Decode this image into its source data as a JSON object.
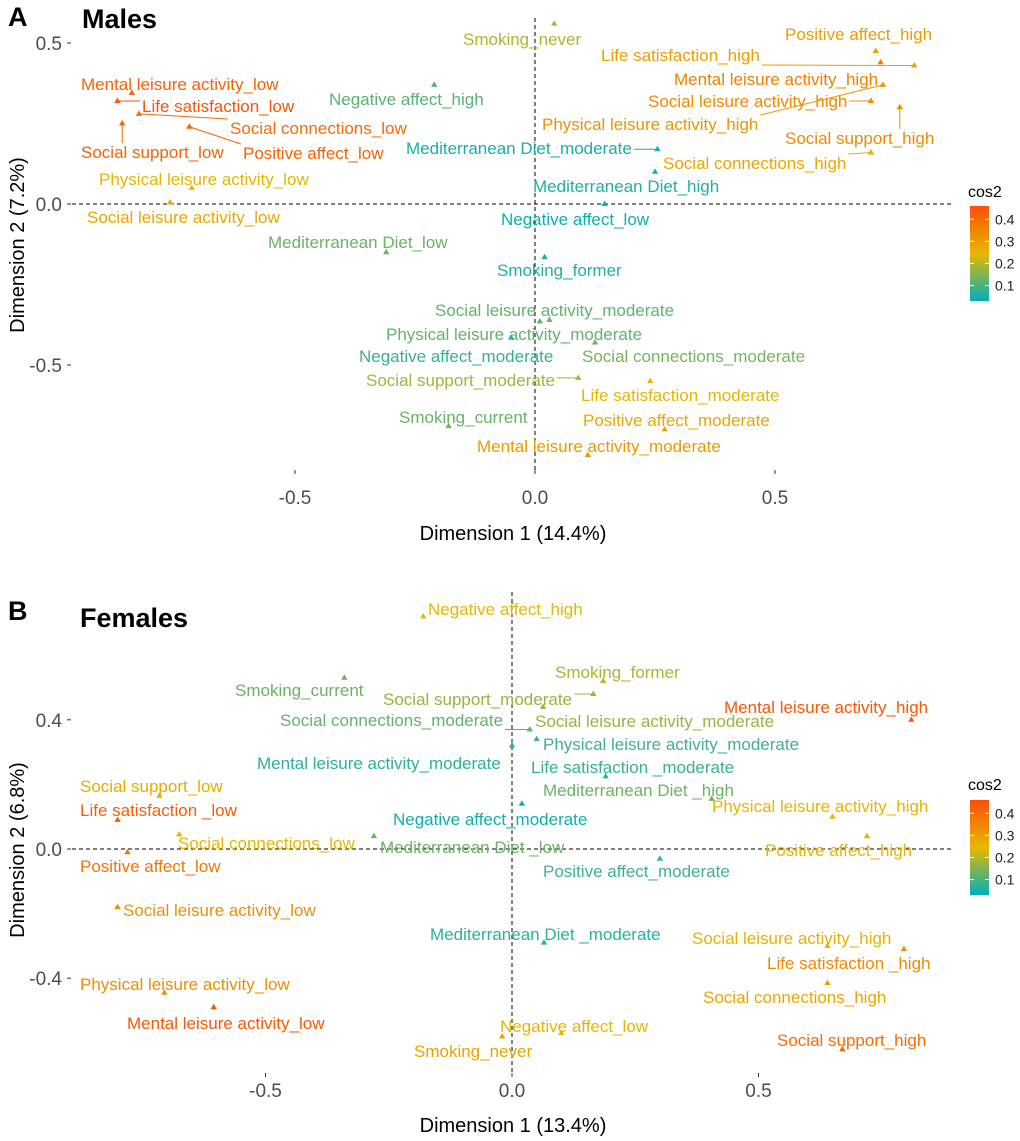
{
  "gradient_colors": [
    "#00AFBB",
    "#E7B800",
    "#FC4E07"
  ],
  "chart_data": [
    {
      "type": "scatter",
      "panel_letter": "A",
      "title": "Males",
      "xlabel": "Dimension 1 (14.4%)",
      "ylabel": "Dimension 2 (7.2%)",
      "x_ticks": [
        "-0.5",
        "0.0",
        "0.5"
      ],
      "y_ticks": [
        "0.5",
        "0.0",
        "-0.5"
      ],
      "x_tick_values": [
        -0.5,
        0,
        0.5
      ],
      "y_tick_values": [
        0.5,
        0,
        -0.5
      ],
      "xlim": [
        -0.97,
        0.87
      ],
      "ylim": [
        -0.83,
        0.57
      ],
      "reference_lines": "dashed at x=0 and y=0",
      "grid": false,
      "legend": {
        "title": "cos2",
        "ticks": [
          "0.1",
          "0.2",
          "0.3",
          "0.4"
        ],
        "tick_values": [
          0.1,
          0.2,
          0.3,
          0.4
        ],
        "range": [
          0.03,
          0.46
        ],
        "placement": "right"
      },
      "points": [
        {
          "label": "Smoking_never",
          "x": 0.04,
          "y": 0.56,
          "cos2": 0.19
        },
        {
          "label": "Positive affect_high",
          "x": 0.71,
          "y": 0.475,
          "cos2": 0.3
        },
        {
          "label": "Life satisfaction_high",
          "x": 0.79,
          "y": 0.43,
          "cos2": 0.3
        },
        {
          "label": "Mental leisure activity_high",
          "x": 0.72,
          "y": 0.44,
          "cos2": 0.36
        },
        {
          "label": "Social leisure activity_high",
          "x": 0.7,
          "y": 0.32,
          "cos2": 0.34
        },
        {
          "label": "Physical leisure activity_high",
          "x": 0.725,
          "y": 0.37,
          "cos2": 0.32
        },
        {
          "label": "Social support_high",
          "x": 0.76,
          "y": 0.3,
          "cos2": 0.34
        },
        {
          "label": "Social connections_high",
          "x": 0.7,
          "y": 0.16,
          "cos2": 0.28
        },
        {
          "label": "Mediterranean Diet_moderate",
          "x": 0.255,
          "y": 0.17,
          "cos2": 0.05
        },
        {
          "label": "Mediterranean Diet_high",
          "x": 0.25,
          "y": 0.1,
          "cos2": 0.06
        },
        {
          "label": "Negative affect_low",
          "x": 0.145,
          "y": 0.0,
          "cos2": 0.04
        },
        {
          "label": "Mental leisure activity_low",
          "x": -0.84,
          "y": 0.345,
          "cos2": 0.42
        },
        {
          "label": "Life satisfaction_low",
          "x": -0.87,
          "y": 0.32,
          "cos2": 0.45
        },
        {
          "label": "Social connections_low",
          "x": -0.825,
          "y": 0.28,
          "cos2": 0.4
        },
        {
          "label": "Social support_low",
          "x": -0.86,
          "y": 0.25,
          "cos2": 0.42
        },
        {
          "label": "Positive affect_low",
          "x": -0.72,
          "y": 0.24,
          "cos2": 0.42
        },
        {
          "label": "Physical leisure activity_low",
          "x": -0.715,
          "y": 0.05,
          "cos2": 0.25
        },
        {
          "label": "Social leisure activity_low",
          "x": -0.76,
          "y": 0.005,
          "cos2": 0.28
        },
        {
          "label": "Negative affect_high",
          "x": -0.21,
          "y": 0.37,
          "cos2": 0.11
        },
        {
          "label": "Mediterranean Diet_low",
          "x": -0.31,
          "y": -0.15,
          "cos2": 0.13
        },
        {
          "label": "Smoking_former",
          "x": 0.02,
          "y": -0.165,
          "cos2": 0.06
        },
        {
          "label": "Social leisure activity_moderate",
          "x": 0.03,
          "y": -0.36,
          "cos2": 0.12
        },
        {
          "label": "Physical leisure activity_moderate",
          "x": 0.01,
          "y": -0.365,
          "cos2": 0.12
        },
        {
          "label": "Negative affect_moderate",
          "x": -0.05,
          "y": -0.415,
          "cos2": 0.08
        },
        {
          "label": "Social connections_moderate",
          "x": 0.125,
          "y": -0.43,
          "cos2": 0.14
        },
        {
          "label": "Social support_moderate",
          "x": 0.09,
          "y": -0.54,
          "cos2": 0.18
        },
        {
          "label": "Life satisfaction_moderate",
          "x": 0.24,
          "y": -0.55,
          "cos2": 0.25
        },
        {
          "label": "Positive affect_moderate",
          "x": 0.27,
          "y": -0.7,
          "cos2": 0.28
        },
        {
          "label": "Smoking_current",
          "x": -0.18,
          "y": -0.69,
          "cos2": 0.13
        },
        {
          "label": "Mental leisure activity_moderate",
          "x": 0.11,
          "y": -0.78,
          "cos2": 0.31
        }
      ]
    },
    {
      "type": "scatter",
      "panel_letter": "B",
      "title": "Females",
      "xlabel": "Dimension 1 (13.4%)",
      "ylabel": "Dimension 2 (6.8%)",
      "x_ticks": [
        "-0.5",
        "0.0",
        "0.5"
      ],
      "y_ticks": [
        "0.4",
        "0.0",
        "-0.4"
      ],
      "x_tick_values": [
        -0.5,
        0,
        0.5
      ],
      "y_tick_values": [
        0.4,
        0,
        -0.4
      ],
      "xlim": [
        -0.9,
        0.9
      ],
      "ylim": [
        -0.66,
        0.79
      ],
      "reference_lines": "dashed at x=0 and y=0",
      "grid": false,
      "legend": {
        "title": "cos2",
        "ticks": [
          "0.1",
          "0.2",
          "0.3",
          "0.4"
        ],
        "tick_values": [
          0.1,
          0.2,
          0.3,
          0.4
        ],
        "range": [
          0.03,
          0.46
        ],
        "placement": "right"
      },
      "points": [
        {
          "label": "Negative affect_high",
          "x": -0.18,
          "y": 0.72,
          "cos2": 0.24
        },
        {
          "label": "Smoking_current",
          "x": -0.34,
          "y": 0.53,
          "cos2": 0.13
        },
        {
          "label": "Smoking_former",
          "x": 0.185,
          "y": 0.52,
          "cos2": 0.19
        },
        {
          "label": "Social support_moderate",
          "x": 0.165,
          "y": 0.48,
          "cos2": 0.17
        },
        {
          "label": "Social connections_moderate",
          "x": 0.036,
          "y": 0.37,
          "cos2": 0.12
        },
        {
          "label": "Social leisure activity_moderate",
          "x": 0.063,
          "y": 0.44,
          "cos2": 0.17
        },
        {
          "label": "Physical leisure activity_moderate",
          "x": 0.05,
          "y": 0.34,
          "cos2": 0.09
        },
        {
          "label": "Mental leisure activity_moderate",
          "x": 0.0,
          "y": 0.32,
          "cos2": 0.07
        },
        {
          "label": "Life satisfaction _moderate",
          "x": 0.19,
          "y": 0.225,
          "cos2": 0.08
        },
        {
          "label": "Mediterranean Diet _high",
          "x": 0.405,
          "y": 0.155,
          "cos2": 0.13
        },
        {
          "label": "Mental leisure activity_high",
          "x": 0.81,
          "y": 0.4,
          "cos2": 0.44
        },
        {
          "label": "Physical leisure activity_high",
          "x": 0.65,
          "y": 0.1,
          "cos2": 0.25
        },
        {
          "label": "Positive affect_high",
          "x": 0.72,
          "y": 0.04,
          "cos2": 0.25
        },
        {
          "label": "Negative affect_moderate",
          "x": 0.02,
          "y": 0.14,
          "cos2": 0.04
        },
        {
          "label": "Mediterranean Diet _low",
          "x": -0.28,
          "y": 0.04,
          "cos2": 0.13
        },
        {
          "label": "Positive affect_moderate",
          "x": 0.3,
          "y": -0.03,
          "cos2": 0.09
        },
        {
          "label": "Social support_low",
          "x": -0.715,
          "y": 0.165,
          "cos2": 0.27
        },
        {
          "label": "Life satisfaction _low",
          "x": -0.8,
          "y": 0.09,
          "cos2": 0.43
        },
        {
          "label": "Social connections_low",
          "x": -0.675,
          "y": 0.045,
          "cos2": 0.25
        },
        {
          "label": "Positive affect_low",
          "x": -0.78,
          "y": -0.01,
          "cos2": 0.38
        },
        {
          "label": "Social leisure activity_low",
          "x": -0.8,
          "y": -0.18,
          "cos2": 0.33
        },
        {
          "label": "Mediterranean Diet _moderate",
          "x": 0.065,
          "y": -0.29,
          "cos2": 0.07
        },
        {
          "label": "Social leisure activity_high",
          "x": 0.64,
          "y": -0.3,
          "cos2": 0.26
        },
        {
          "label": "Life satisfaction _high",
          "x": 0.795,
          "y": -0.31,
          "cos2": 0.34
        },
        {
          "label": "Social connections_high",
          "x": 0.64,
          "y": -0.415,
          "cos2": 0.28
        },
        {
          "label": "Physical leisure activity_low",
          "x": -0.705,
          "y": -0.445,
          "cos2": 0.33
        },
        {
          "label": "Mental leisure activity_low",
          "x": -0.605,
          "y": -0.49,
          "cos2": 0.44
        },
        {
          "label": "Negative affect_low",
          "x": 0.1,
          "y": -0.57,
          "cos2": 0.25
        },
        {
          "label": "Smoking_never",
          "x": -0.02,
          "y": -0.58,
          "cos2": 0.29
        },
        {
          "label": "Social support_high",
          "x": 0.67,
          "y": -0.62,
          "cos2": 0.4
        }
      ]
    }
  ]
}
